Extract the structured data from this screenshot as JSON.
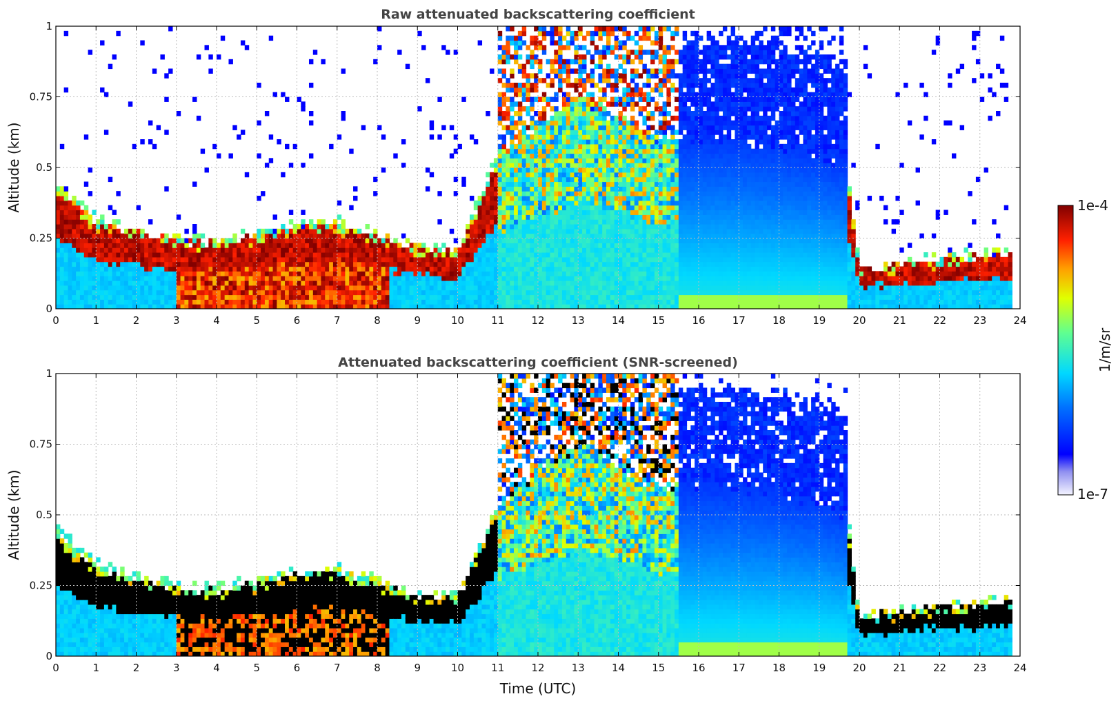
{
  "chart_data": [
    {
      "type": "heatmap",
      "title": "Raw attenuated backscattering coefficient",
      "xlabel": "",
      "ylabel": "Altitude (km)",
      "xlim": [
        0,
        24
      ],
      "ylim": [
        0,
        1
      ],
      "xticks": [
        "0",
        "1",
        "2",
        "3",
        "4",
        "5",
        "6",
        "7",
        "8",
        "9",
        "10",
        "11",
        "12",
        "13",
        "14",
        "15",
        "16",
        "17",
        "18",
        "19",
        "20",
        "21",
        "22",
        "23",
        "24"
      ],
      "yticks": [
        "0",
        "0.25",
        "0.5",
        "0.75",
        "1"
      ],
      "grid": true,
      "color_scale": "log",
      "data_end_hour": 23.8,
      "layer_top_km": [
        {
          "t": 0,
          "top": 0.45
        },
        {
          "t": 1,
          "top": 0.32
        },
        {
          "t": 2,
          "top": 0.28
        },
        {
          "t": 3,
          "top": 0.25
        },
        {
          "t": 4,
          "top": 0.24
        },
        {
          "t": 5,
          "top": 0.27
        },
        {
          "t": 6,
          "top": 0.3
        },
        {
          "t": 7,
          "top": 0.31
        },
        {
          "t": 8,
          "top": 0.27
        },
        {
          "t": 9,
          "top": 0.22
        },
        {
          "t": 10,
          "top": 0.21
        },
        {
          "t": 11,
          "top": 0.55
        },
        {
          "t": 13,
          "top": 0.75
        },
        {
          "t": 15,
          "top": 0.6
        },
        {
          "t": 17,
          "top": 0.6
        },
        {
          "t": 19,
          "top": 0.55
        },
        {
          "t": 19.7,
          "top": 0.5
        },
        {
          "t": 20,
          "top": 0.14
        },
        {
          "t": 21,
          "top": 0.16
        },
        {
          "t": 22,
          "top": 0.18
        },
        {
          "t": 23.8,
          "top": 0.2
        }
      ]
    },
    {
      "type": "heatmap",
      "title": "Attenuated backscattering coefficient (SNR-screened)",
      "xlabel": "Time (UTC)",
      "ylabel": "Altitude (km)",
      "xlim": [
        0,
        24
      ],
      "ylim": [
        0,
        1
      ],
      "xticks": [
        "0",
        "1",
        "2",
        "3",
        "4",
        "5",
        "6",
        "7",
        "8",
        "9",
        "10",
        "11",
        "12",
        "13",
        "14",
        "15",
        "16",
        "17",
        "18",
        "19",
        "20",
        "21",
        "22",
        "23",
        "24"
      ],
      "yticks": [
        "0",
        "0.25",
        "0.5",
        "0.75",
        "1"
      ],
      "grid": true,
      "color_scale": "log",
      "data_end_hour": 23.8,
      "screened_color": "#000000"
    }
  ],
  "colorbar": {
    "label": "1/m/sr",
    "max_label": "1e-4",
    "min_label": "1e-7",
    "colormap": "jet",
    "scale": "log",
    "range": [
      1e-07,
      0.0001
    ]
  }
}
